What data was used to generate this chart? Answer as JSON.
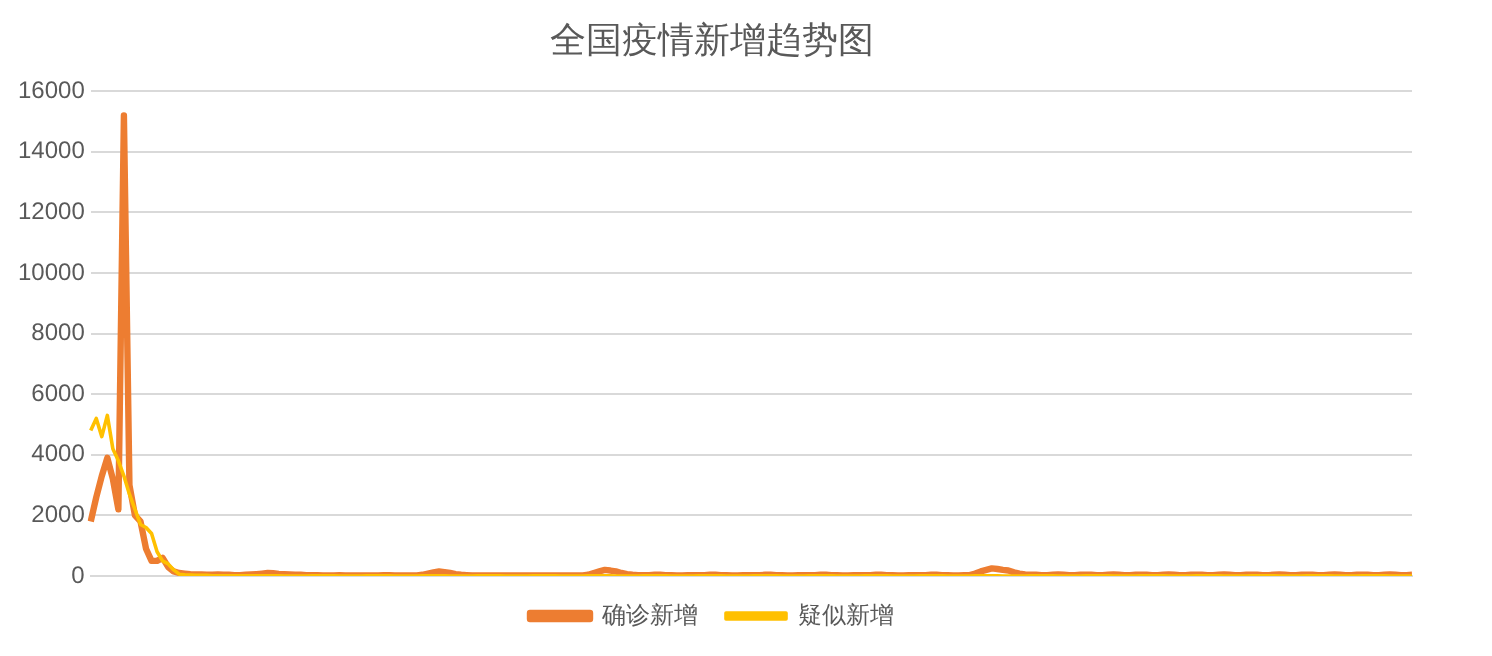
{
  "chart_data": {
    "type": "line",
    "title": "全国疫情新增趋势图",
    "categories": [
      null,
      null,
      null,
      null,
      null,
      null,
      null,
      null,
      null,
      null,
      null,
      null,
      null,
      null,
      null,
      null,
      null,
      null,
      null,
      null,
      null,
      null,
      null,
      null,
      null,
      null,
      null,
      null,
      null,
      null,
      null,
      null,
      null,
      null,
      null,
      null,
      null,
      null,
      null,
      null,
      null,
      null,
      null,
      null,
      null,
      null,
      null,
      null,
      null,
      null,
      null,
      null,
      null,
      null,
      null,
      null,
      null,
      null,
      null,
      null,
      null,
      null,
      null,
      null,
      null,
      null,
      null,
      null,
      null,
      null,
      null,
      null,
      null,
      null,
      null,
      null,
      null,
      null,
      null,
      null,
      null,
      null,
      null,
      null,
      null,
      null,
      null,
      null,
      null,
      null,
      null,
      null,
      null,
      null,
      null,
      null,
      null,
      null,
      null,
      null,
      null,
      null,
      null,
      null,
      null,
      null,
      null,
      null,
      null,
      null,
      null,
      null,
      null,
      null,
      null,
      null,
      null,
      null,
      null,
      null,
      null,
      null,
      null,
      null,
      null,
      null,
      null,
      null,
      null,
      null,
      null,
      null,
      null,
      null,
      null,
      null,
      null,
      null,
      null,
      null,
      null,
      null,
      null,
      null,
      null,
      null,
      null,
      null,
      null,
      null,
      null,
      null,
      null,
      null,
      null,
      null,
      null,
      null,
      null,
      null,
      null,
      null,
      null,
      null,
      null,
      null,
      null,
      null,
      null,
      null,
      null,
      null,
      null,
      null,
      null,
      null,
      null,
      null,
      null,
      null,
      null,
      null,
      null,
      null,
      null,
      null,
      null,
      null,
      null,
      null,
      null,
      null,
      null,
      null,
      null,
      null,
      null,
      null,
      null,
      null,
      null,
      null,
      null,
      null,
      null,
      null,
      null,
      null,
      null,
      null,
      null,
      null,
      null,
      null,
      null,
      null,
      null,
      null,
      null,
      null,
      null,
      null,
      null,
      null,
      null,
      null,
      null,
      null,
      null,
      null,
      null,
      null,
      null,
      null,
      null,
      null,
      null,
      null,
      null,
      null
    ],
    "series": [
      {
        "name": "确诊新增",
        "color": "#ed7d31",
        "values": [
          1800,
          2600,
          3300,
          3900,
          3200,
          2200,
          15200,
          3000,
          2000,
          1800,
          900,
          500,
          500,
          600,
          300,
          150,
          100,
          80,
          60,
          50,
          50,
          40,
          40,
          50,
          40,
          40,
          30,
          30,
          40,
          50,
          60,
          80,
          100,
          90,
          70,
          60,
          50,
          40,
          40,
          30,
          30,
          30,
          20,
          20,
          20,
          30,
          20,
          20,
          20,
          20,
          20,
          20,
          20,
          30,
          30,
          20,
          20,
          20,
          20,
          20,
          40,
          80,
          120,
          150,
          130,
          100,
          60,
          40,
          30,
          20,
          20,
          20,
          20,
          20,
          20,
          20,
          20,
          20,
          20,
          20,
          20,
          20,
          20,
          20,
          20,
          20,
          20,
          20,
          20,
          20,
          40,
          100,
          150,
          200,
          180,
          150,
          100,
          60,
          40,
          30,
          30,
          30,
          40,
          40,
          30,
          30,
          20,
          20,
          30,
          30,
          30,
          30,
          40,
          40,
          30,
          30,
          20,
          20,
          30,
          30,
          30,
          30,
          40,
          40,
          30,
          30,
          20,
          20,
          30,
          30,
          30,
          30,
          40,
          40,
          30,
          30,
          20,
          20,
          30,
          30,
          30,
          30,
          40,
          40,
          30,
          30,
          20,
          20,
          30,
          30,
          30,
          30,
          40,
          40,
          30,
          30,
          20,
          20,
          30,
          30,
          80,
          150,
          200,
          250,
          230,
          200,
          180,
          120,
          80,
          50,
          40,
          40,
          30,
          30,
          40,
          50,
          40,
          30,
          30,
          40,
          40,
          40,
          30,
          30,
          40,
          50,
          40,
          30,
          30,
          40,
          40,
          40,
          30,
          30,
          40,
          50,
          40,
          30,
          30,
          40,
          40,
          40,
          30,
          30,
          40,
          50,
          40,
          30,
          30,
          40,
          40,
          40,
          30,
          30,
          40,
          50,
          40,
          30,
          30,
          40,
          40,
          40,
          30,
          30,
          40,
          50,
          40,
          30,
          30,
          40,
          40,
          40,
          30,
          30,
          40,
          50,
          40,
          30,
          30,
          40
        ]
      },
      {
        "name": "疑似新增",
        "color": "#ffc000",
        "values": [
          4800,
          5200,
          4600,
          5300,
          4200,
          3800,
          3300,
          2700,
          2200,
          1700,
          1600,
          1400,
          800,
          500,
          400,
          200,
          60,
          40,
          30,
          20,
          20,
          20,
          10,
          10,
          10,
          10,
          10,
          10,
          10,
          10,
          10,
          10,
          10,
          10,
          10,
          0,
          0,
          0,
          0,
          0,
          10,
          10,
          10,
          10,
          10,
          0,
          0,
          0,
          0,
          0,
          10,
          10,
          10,
          10,
          10,
          0,
          0,
          0,
          0,
          0,
          10,
          10,
          10,
          10,
          10,
          0,
          0,
          0,
          0,
          0,
          10,
          10,
          10,
          10,
          10,
          0,
          0,
          0,
          0,
          0,
          10,
          10,
          10,
          10,
          10,
          0,
          0,
          0,
          0,
          0,
          10,
          10,
          10,
          10,
          10,
          0,
          0,
          0,
          0,
          0,
          10,
          10,
          10,
          10,
          10,
          0,
          0,
          0,
          0,
          0,
          10,
          10,
          10,
          10,
          10,
          0,
          0,
          0,
          0,
          0,
          10,
          10,
          10,
          10,
          10,
          0,
          0,
          0,
          0,
          0,
          10,
          10,
          10,
          10,
          10,
          0,
          0,
          0,
          0,
          0,
          10,
          10,
          10,
          10,
          10,
          0,
          0,
          0,
          0,
          0,
          10,
          10,
          10,
          10,
          10,
          0,
          0,
          0,
          0,
          0,
          10,
          10,
          10,
          10,
          10,
          0,
          0,
          0,
          0,
          0,
          10,
          10,
          10,
          10,
          10,
          0,
          0,
          0,
          0,
          0,
          10,
          10,
          10,
          10,
          10,
          0,
          0,
          0,
          0,
          0,
          10,
          10,
          10,
          10,
          10,
          0,
          0,
          0,
          0,
          0,
          10,
          10,
          10,
          10,
          10,
          0,
          0,
          0,
          0,
          0,
          10,
          10,
          10,
          10,
          10,
          0,
          0,
          0,
          0,
          0,
          10,
          10,
          10,
          10,
          10,
          0,
          0,
          0,
          0,
          0,
          10,
          10,
          10,
          10,
          10,
          0,
          0,
          0,
          0,
          0
        ]
      }
    ],
    "ylim": [
      0,
      16000
    ],
    "yticks": [
      0,
      2000,
      4000,
      6000,
      8000,
      10000,
      12000,
      14000,
      16000
    ],
    "grid": "y",
    "legend": "bottom"
  }
}
